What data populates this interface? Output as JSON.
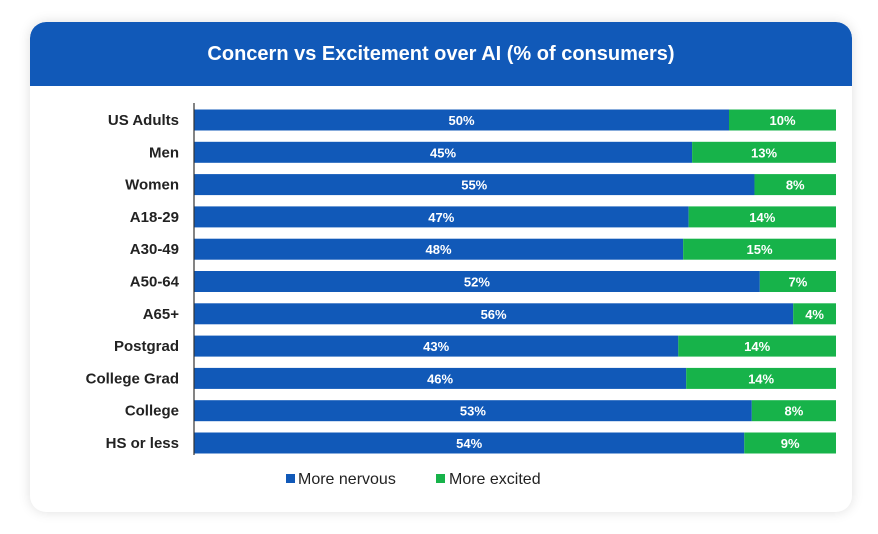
{
  "chart_data": {
    "type": "bar",
    "orientation": "horizontal",
    "stacked": true,
    "title": "Concern vs Excitement over AI (% of consumers)",
    "categories": [
      "US Adults",
      "Men",
      "Women",
      "A18-29",
      "A30-49",
      "A50-64",
      "A65+",
      "Postgrad",
      "College Grad",
      "College",
      "HS or less"
    ],
    "series": [
      {
        "name": "More nervous",
        "color": "#1159b8",
        "values": [
          50,
          45,
          55,
          47,
          48,
          52,
          56,
          43,
          46,
          53,
          54
        ]
      },
      {
        "name": "More excited",
        "color": "#17b34a",
        "values": [
          10,
          13,
          8,
          14,
          15,
          7,
          4,
          14,
          14,
          8,
          9
        ]
      }
    ],
    "value_suffix": "%",
    "legend_position": "bottom",
    "xlabel": "",
    "ylabel": ""
  },
  "colors": {
    "header_bg": "#1159b8",
    "header_text": "#ffffff",
    "axis": "#333333"
  }
}
